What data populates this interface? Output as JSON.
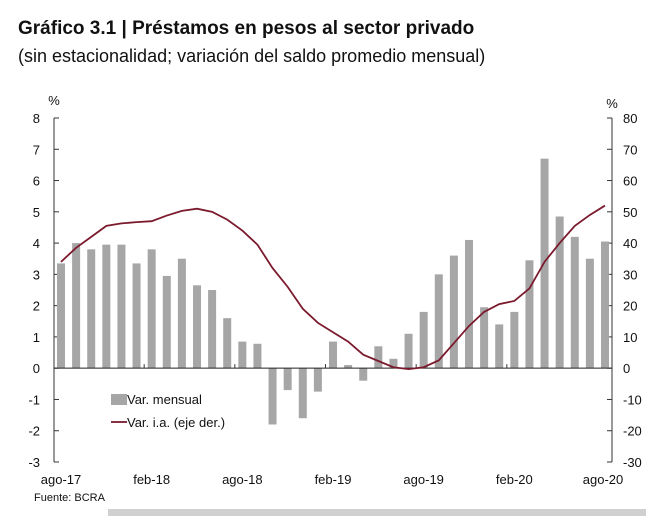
{
  "title": "Gráfico 3.1 | Préstamos en pesos al sector privado",
  "subtitle": "(sin estacionalidad; variación del saldo promedio mensual)",
  "source": "Fuente: BCRA",
  "chart_data": {
    "type": "bar+line",
    "title": "Gráfico 3.1 | Préstamos en pesos al sector privado",
    "subtitle": "(sin estacionalidad; variación del saldo promedio mensual)",
    "left_axis": {
      "unit": "%",
      "range": [
        -3,
        8
      ],
      "ticks": [
        -3,
        -2,
        -1,
        0,
        1,
        2,
        3,
        4,
        5,
        6,
        7,
        8
      ]
    },
    "right_axis": {
      "unit": "%",
      "range": [
        -30,
        80
      ],
      "ticks": [
        -30,
        -20,
        -10,
        0,
        10,
        20,
        30,
        40,
        50,
        60,
        70,
        80
      ]
    },
    "x_tick_labels": [
      "ago-17",
      "feb-18",
      "ago-18",
      "feb-19",
      "ago-19",
      "feb-20",
      "ago-20"
    ],
    "x": [
      "ago-17",
      "sep-17",
      "oct-17",
      "nov-17",
      "dic-17",
      "ene-18",
      "feb-18",
      "mar-18",
      "abr-18",
      "may-18",
      "jun-18",
      "jul-18",
      "ago-18",
      "sep-18",
      "oct-18",
      "nov-18",
      "dic-18",
      "ene-19",
      "feb-19",
      "mar-19",
      "abr-19",
      "may-19",
      "jun-19",
      "jul-19",
      "ago-19",
      "sep-19",
      "oct-19",
      "nov-19",
      "dic-19",
      "ene-20",
      "feb-20",
      "mar-20",
      "abr-20",
      "may-20",
      "jun-20",
      "jul-20",
      "ago-20"
    ],
    "legend_position": "bottom-left",
    "series": [
      {
        "name": "Var. mensual",
        "type": "bar",
        "axis": "left",
        "color": "#a6a6a6",
        "values": [
          3.35,
          4.0,
          3.8,
          3.95,
          3.95,
          3.35,
          3.8,
          2.95,
          3.5,
          2.65,
          2.5,
          1.6,
          0.85,
          0.78,
          -1.8,
          -0.7,
          -1.6,
          -0.75,
          0.85,
          0.1,
          -0.4,
          0.7,
          0.3,
          1.1,
          1.8,
          3.0,
          3.6,
          4.1,
          1.95,
          1.4,
          1.8,
          3.45,
          6.7,
          4.85,
          4.2,
          3.5,
          4.05
        ]
      },
      {
        "name": "Var. i.a. (eje der.)",
        "type": "line",
        "axis": "right",
        "color": "#7b1a2c",
        "values": [
          34,
          38.5,
          42,
          45.5,
          46.3,
          46.7,
          47,
          48.8,
          50.3,
          51,
          50,
          47.5,
          44,
          39.5,
          32,
          26,
          19,
          14.5,
          11.5,
          8.5,
          4.3,
          2.3,
          0.3,
          -0.3,
          0.3,
          2.5,
          8,
          13.5,
          18,
          20.5,
          21.5,
          25.5,
          34,
          40,
          45.5,
          49,
          52
        ]
      }
    ]
  }
}
